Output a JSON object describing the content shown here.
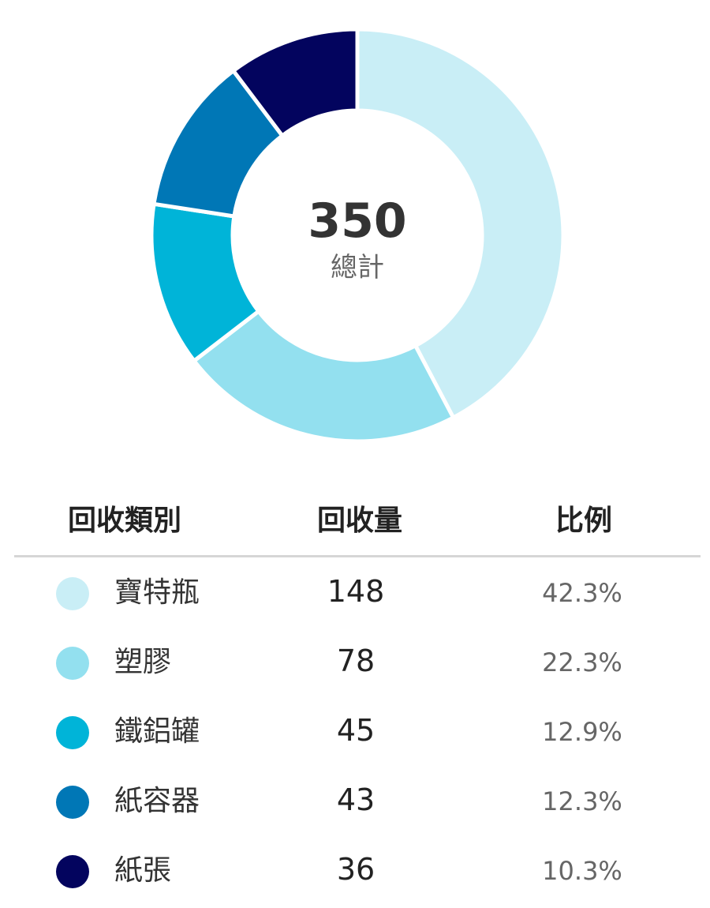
{
  "chart_data": {
    "type": "pie",
    "variant": "donut",
    "center_value": "350",
    "center_label": "總計",
    "table_headers": {
      "category": "回收類別",
      "amount": "回收量",
      "ratio": "比例"
    },
    "slices": [
      {
        "label": "寶特瓶",
        "value": 148,
        "percent": "42.3%",
        "color": "#c9eef6"
      },
      {
        "label": "塑膠",
        "value": 78,
        "percent": "22.3%",
        "color": "#93e0ef"
      },
      {
        "label": "鐵鋁罐",
        "value": 45,
        "percent": "12.9%",
        "color": "#00b4d8"
      },
      {
        "label": "紙容器",
        "value": 43,
        "percent": "12.3%",
        "color": "#0077b6"
      },
      {
        "label": "紙張",
        "value": 36,
        "percent": "10.3%",
        "color": "#03045e"
      }
    ]
  }
}
